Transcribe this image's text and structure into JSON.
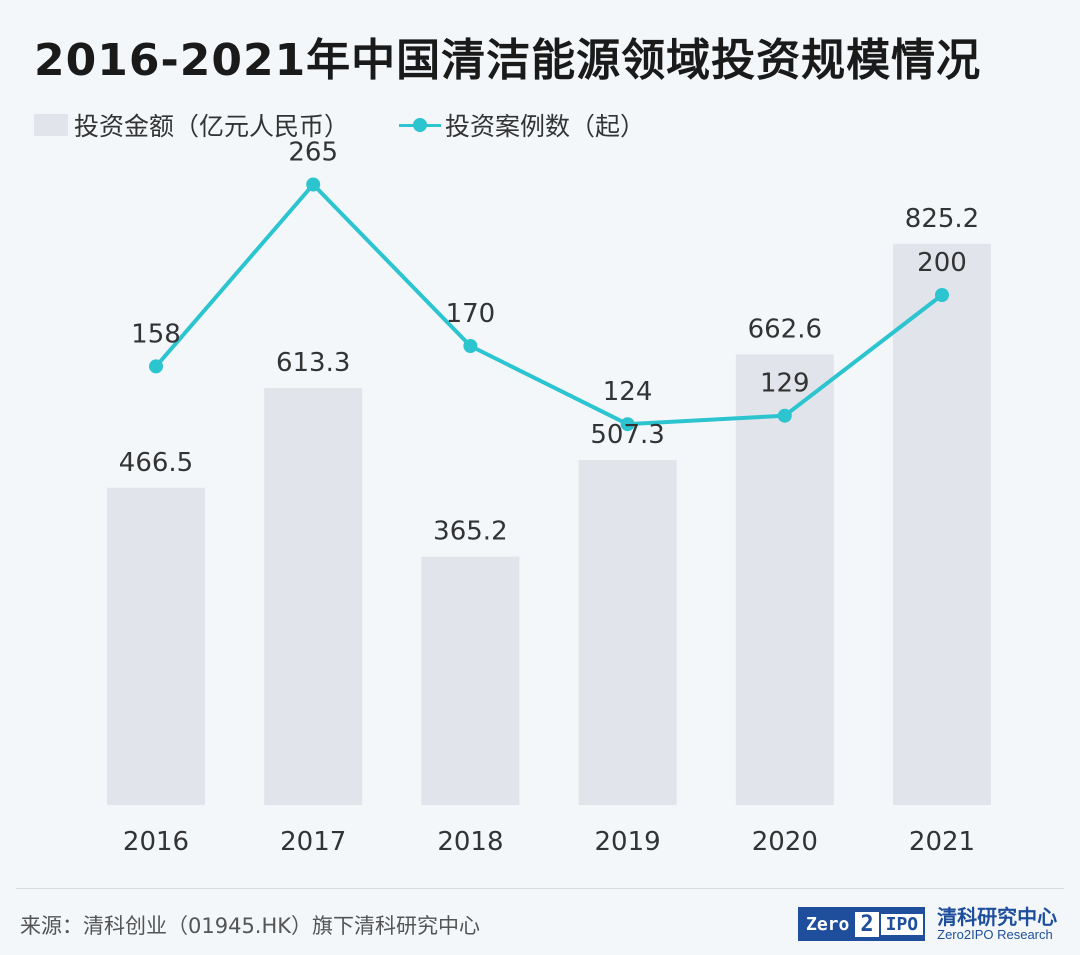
{
  "title": "2016-2021年中国清洁能源领域投资规模情况",
  "legend": {
    "bar_label": "投资金额（亿元人民币）",
    "line_label": "投资案例数（起）"
  },
  "footer": {
    "source": "来源：清科创业（01945.HK）旗下清科研究中心",
    "logo_zero": "Zero",
    "logo_two": "2",
    "logo_ipo": "IPO",
    "logo_cn": "清科研究中心",
    "logo_en": "Zero2IPO Research"
  },
  "colors": {
    "bar": "#e1e4ea",
    "line": "#2bc4cf",
    "text": "#333333"
  },
  "chart_data": {
    "type": "bar+line",
    "title": "2016-2021年中国清洁能源领域投资规模情况",
    "categories": [
      "2016",
      "2017",
      "2018",
      "2019",
      "2020",
      "2021"
    ],
    "series": [
      {
        "name": "投资金额（亿元人民币）",
        "type": "bar",
        "values": [
          466.5,
          613.3,
          365.2,
          507.3,
          662.6,
          825.2
        ]
      },
      {
        "name": "投资案例数（起）",
        "type": "line",
        "values": [
          158,
          265,
          170,
          124,
          129,
          200
        ]
      }
    ],
    "bar_ylim": [
      0,
      1000
    ],
    "line_ylim": [
      -100,
      300
    ],
    "grid": false,
    "legend": "top-left"
  }
}
